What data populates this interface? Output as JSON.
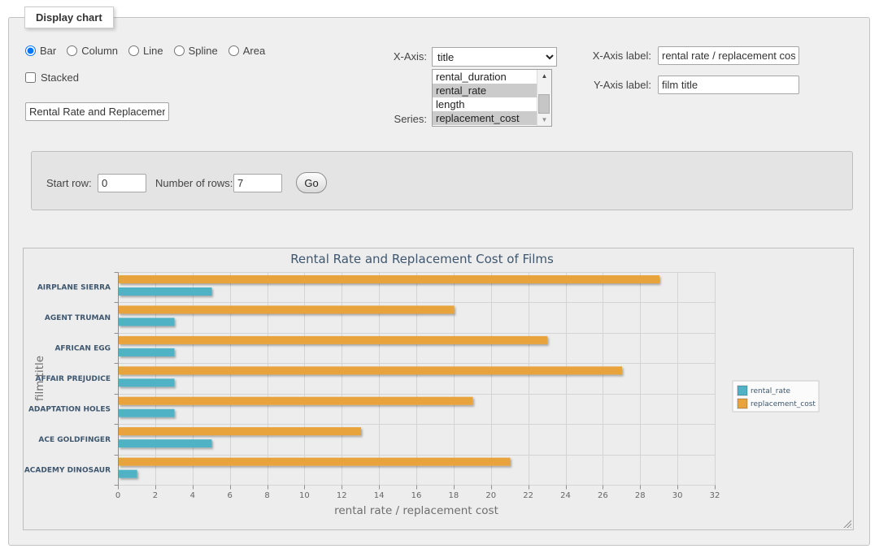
{
  "panel": {
    "legend_title": "Display chart",
    "chart_types": [
      {
        "label": "Bar",
        "selected": true
      },
      {
        "label": "Column",
        "selected": false
      },
      {
        "label": "Line",
        "selected": false
      },
      {
        "label": "Spline",
        "selected": false
      },
      {
        "label": "Area",
        "selected": false
      }
    ],
    "stacked": {
      "label": "Stacked",
      "checked": false
    },
    "chart_title_input": {
      "value": "Rental Rate and Replacement Cost of Films"
    },
    "x_axis_select": {
      "label": "X-Axis:",
      "selected": "title"
    },
    "series_select": {
      "label": "Series:",
      "options": [
        {
          "label": "rental_duration",
          "selected": false
        },
        {
          "label": "rental_rate",
          "selected": true
        },
        {
          "label": "length",
          "selected": false
        },
        {
          "label": "replacement_cost",
          "selected": true
        }
      ]
    },
    "x_axis_label_input": {
      "label": "X-Axis label:",
      "value": "rental rate / replacement cost"
    },
    "y_axis_label_input": {
      "label": "Y-Axis label:",
      "value": "film title"
    }
  },
  "row_controls": {
    "start_row": {
      "label": "Start row:",
      "value": "0"
    },
    "number_of_rows": {
      "label": "Number of rows:",
      "value": "7"
    },
    "go_button": "Go"
  },
  "chart_data": {
    "type": "bar",
    "title": "Rental Rate and Replacement Cost of Films",
    "categories": [
      "AIRPLANE SIERRA",
      "AGENT TRUMAN",
      "AFRICAN EGG",
      "AFFAIR PREJUDICE",
      "ADAPTATION HOLES",
      "ACE GOLDFINGER",
      "ACADEMY DINOSAUR"
    ],
    "series": [
      {
        "name": "rental_rate",
        "color": "#4FB2C5",
        "values": [
          4.99,
          2.99,
          2.99,
          2.99,
          2.99,
          4.99,
          0.99
        ]
      },
      {
        "name": "replacement_cost",
        "color": "#E8A33C",
        "values": [
          28.99,
          17.99,
          22.99,
          26.99,
          18.99,
          12.99,
          20.99
        ]
      }
    ],
    "xlabel": "rental rate / replacement cost",
    "ylabel": "film title",
    "xlim": [
      0,
      32
    ],
    "xticks": [
      0,
      2,
      4,
      6,
      8,
      10,
      12,
      14,
      16,
      18,
      20,
      22,
      24,
      26,
      28,
      30,
      32
    ],
    "grid": true,
    "legend_position": "right",
    "series_display_order": "reversed-within-category"
  },
  "colors": {
    "rental_rate": "#4FB2C5",
    "replacement_cost": "#E8A33C",
    "panel_bg": "#EFEFEF",
    "subpanel_bg": "#E4E4E4",
    "chart_bg": "#EDEDED",
    "grid_line": "#D4D4D4",
    "axis_line": "#8F8F8F",
    "chart_text": "#3E576F"
  }
}
